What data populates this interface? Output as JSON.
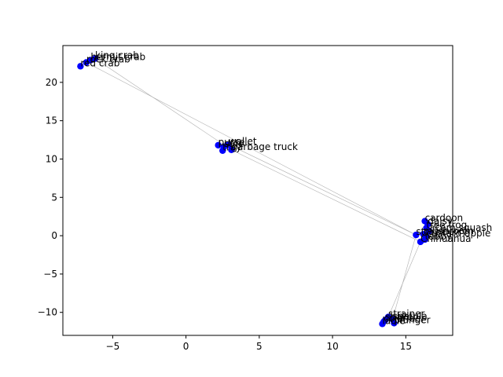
{
  "chart_data": {
    "type": "scatter",
    "title": "",
    "xlabel": "",
    "ylabel": "",
    "xlim": [
      -8.4,
      18.2
    ],
    "ylim": [
      -13.0,
      24.8
    ],
    "grid": false,
    "legend": "none",
    "point_color": "#0000ff",
    "line_color": "#b0b0b0",
    "xticks": [
      -5,
      0,
      5,
      10,
      15
    ],
    "yticks": [
      -10,
      -5,
      0,
      5,
      10,
      15,
      20
    ],
    "points": [
      {
        "label": "king crab",
        "x": -6.2,
        "y": 23.1
      },
      {
        "label": "hermit crab",
        "x": -6.5,
        "y": 22.9
      },
      {
        "label": "rock crab",
        "x": -6.8,
        "y": 22.6
      },
      {
        "label": "red crab",
        "x": -7.2,
        "y": 22.1
      },
      {
        "label": "wallet",
        "x": 2.9,
        "y": 11.9
      },
      {
        "label": "purse",
        "x": 2.2,
        "y": 11.8
      },
      {
        "label": "safe",
        "x": 2.6,
        "y": 11.6
      },
      {
        "label": "tray",
        "x": 2.5,
        "y": 11.1
      },
      {
        "label": "garbage truck",
        "x": 3.1,
        "y": 11.2
      },
      {
        "label": "cardoon",
        "x": 16.3,
        "y": 1.9
      },
      {
        "label": "daisy",
        "x": 16.5,
        "y": 1.5
      },
      {
        "label": "tree frog",
        "x": 16.4,
        "y": 1.0
      },
      {
        "label": "acorn squash",
        "x": 16.6,
        "y": 0.6
      },
      {
        "label": "mushroom",
        "x": 16.2,
        "y": 0.2
      },
      {
        "label": "strawberry",
        "x": 15.7,
        "y": 0.1
      },
      {
        "label": "custard apple",
        "x": 16.4,
        "y": -0.1
      },
      {
        "label": "Chihuahua",
        "x": 16.0,
        "y": -0.8
      },
      {
        "label": "tabby",
        "x": 16.3,
        "y": -0.5
      },
      {
        "label": "strainer",
        "x": 13.8,
        "y": -10.6
      },
      {
        "label": "spatula",
        "x": 14.1,
        "y": -10.9
      },
      {
        "label": "shaker",
        "x": 13.6,
        "y": -11.0
      },
      {
        "label": "colander",
        "x": 13.5,
        "y": -11.2
      },
      {
        "label": "ladle",
        "x": 13.4,
        "y": -11.5
      },
      {
        "label": "plunger",
        "x": 14.2,
        "y": -11.4
      }
    ],
    "connections": [
      [
        -6.2,
        23.1,
        3.1,
        11.2
      ],
      [
        -6.8,
        22.6,
        15.7,
        0.1
      ],
      [
        2.9,
        11.9,
        15.7,
        0.1
      ],
      [
        3.1,
        11.2,
        16.0,
        -0.8
      ],
      [
        15.7,
        0.1,
        14.1,
        -10.9
      ],
      [
        16.0,
        -0.8,
        13.8,
        -10.6
      ]
    ]
  }
}
